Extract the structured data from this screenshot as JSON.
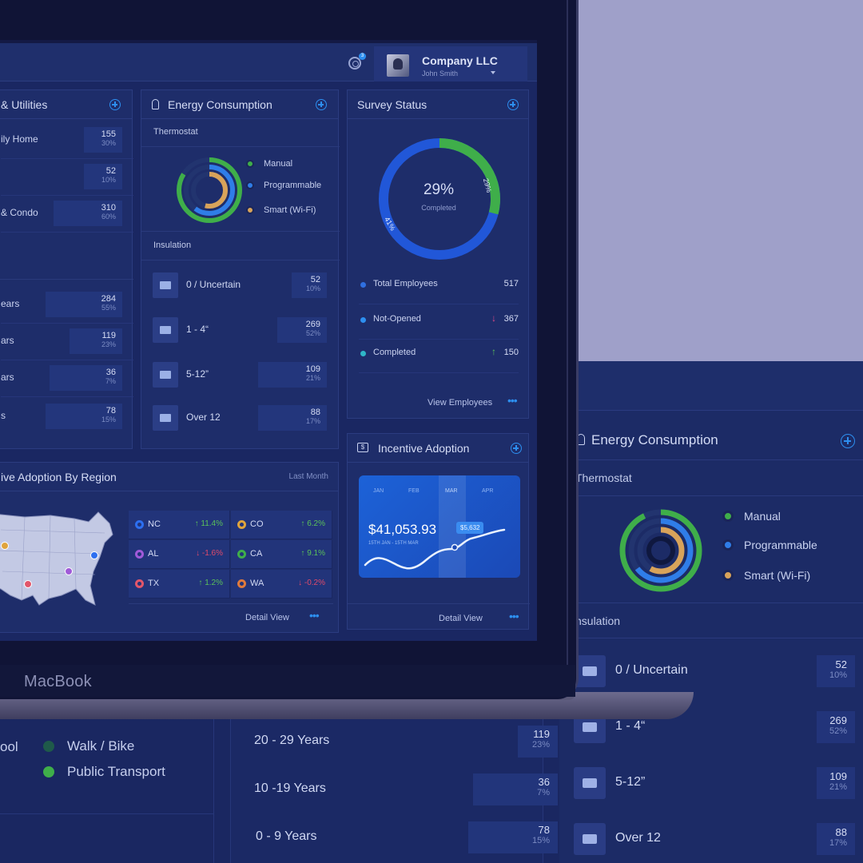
{
  "laptop": {
    "brand_label": "MacBook"
  },
  "header": {
    "notification_count": "3",
    "company": "Company LLC",
    "user": "John Smith"
  },
  "utilities_card": {
    "title": "& Utilities",
    "rows": [
      {
        "label": "ily Home",
        "value": "155",
        "pct": "30%"
      },
      {
        "label": "",
        "value": "52",
        "pct": "10%"
      },
      {
        "label": "& Condo",
        "value": "310",
        "pct": "60%"
      }
    ],
    "age_rows": [
      {
        "label": "ears",
        "value": "284",
        "pct": "55%"
      },
      {
        "label": "ars",
        "value": "119",
        "pct": "23%"
      },
      {
        "label": "ars",
        "value": "36",
        "pct": "7%"
      },
      {
        "label": "s",
        "value": "78",
        "pct": "15%"
      }
    ]
  },
  "energy_card": {
    "title": "Energy Consumption",
    "thermostat_label": "Thermostat",
    "legend": [
      {
        "label": "Manual",
        "color": "#3fae4a"
      },
      {
        "label": "Programmable",
        "color": "#2f7de8"
      },
      {
        "label": "Smart (Wi-Fi)",
        "color": "#d8a35a"
      }
    ],
    "insulation_label": "Insulation",
    "insulation": [
      {
        "label": "0 / Uncertain",
        "value": "52",
        "pct": "10%"
      },
      {
        "label": "1 - 4“",
        "value": "269",
        "pct": "52%"
      },
      {
        "label": "5-12”",
        "value": "109",
        "pct": "21%"
      },
      {
        "label": "Over 12",
        "value": "88",
        "pct": "17%"
      }
    ]
  },
  "survey_card": {
    "title": "Survey Status",
    "center_value": "29%",
    "center_label": "Completed",
    "arc_labels": {
      "completed": "29%",
      "total": "41%"
    },
    "rows": [
      {
        "label": "Total Employees",
        "value": "517",
        "dot": "#2f6fe0",
        "arrow": ""
      },
      {
        "label": "Not-Opened",
        "value": "367",
        "dot": "#2d8ff0",
        "arrow": "↓"
      },
      {
        "label": "Completed",
        "value": "150",
        "dot": "#2fb6c8",
        "arrow": "↑"
      }
    ],
    "link": "View Employees"
  },
  "region_card": {
    "title": "ive Adoption By Region",
    "period": "Last Month",
    "cells": [
      {
        "state": "NC",
        "change": "↑ 11.4%",
        "color": "#2d6ff0",
        "dir": "up"
      },
      {
        "state": "CO",
        "change": "↑ 6.2%",
        "color": "#e0a43c",
        "dir": "up"
      },
      {
        "state": "AL",
        "change": "↓ -1.6%",
        "color": "#a05ad8",
        "dir": "down"
      },
      {
        "state": "CA",
        "change": "↑ 9.1%",
        "color": "#3fae4a",
        "dir": "up"
      },
      {
        "state": "TX",
        "change": "↑ 1.2%",
        "color": "#e2566a",
        "dir": "up"
      },
      {
        "state": "WA",
        "change": "↓ -0.2%",
        "color": "#e07a3c",
        "dir": "down"
      }
    ],
    "link": "Detail View"
  },
  "incentive_card": {
    "title": "Incentive Adoption",
    "months": [
      "JAN",
      "FEB",
      "MAR",
      "APR"
    ],
    "amount": "$41,053.93",
    "range": "15TH JAN - 15TH MAR",
    "tooltip": "$5,632",
    "link": "Detail View"
  },
  "bg_energy": {
    "title": "Energy Consumption",
    "thermostat_label": "Thermostat",
    "legend": [
      "Manual",
      "Programmable",
      "Smart (Wi-Fi)"
    ],
    "insulation_label": "nsulation",
    "rows": [
      {
        "label": "0 / Uncertain",
        "value": "52",
        "pct": "10%"
      },
      {
        "label": "1 - 4“",
        "value": "269",
        "pct": "52%"
      },
      {
        "label": "5-12”",
        "value": "109",
        "pct": "21%"
      },
      {
        "label": "Over 12",
        "value": "88",
        "pct": "17%"
      }
    ]
  },
  "bg_bottom": {
    "partial_label": "ool",
    "legend": [
      "Walk / Bike",
      "Public Transport"
    ],
    "years": [
      {
        "label": "20 - 29 Years",
        "value": "119",
        "pct": "23%"
      },
      {
        "label": "10 -19 Years",
        "value": "36",
        "pct": "7%"
      },
      {
        "label": "0 - 9 Years",
        "value": "78",
        "pct": "15%"
      }
    ]
  }
}
